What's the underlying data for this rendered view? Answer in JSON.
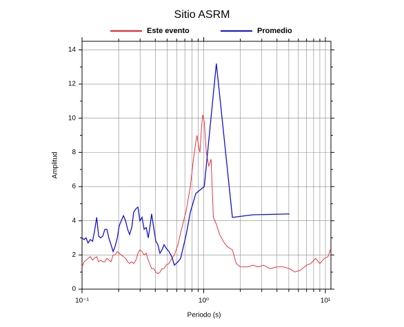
{
  "chart_data": {
    "type": "line",
    "title": "Sitio ASRM",
    "xlabel": "Periodo (s)",
    "ylabel": "Amplitud",
    "xscale": "log",
    "grid": true,
    "xlim": [
      0.1,
      11.1
    ],
    "ylim": [
      0,
      14.5
    ],
    "xticks": [
      {
        "value": 0.1,
        "label": "10⁻¹"
      },
      {
        "value": 1,
        "label": "10⁰"
      },
      {
        "value": 10,
        "label": "10¹"
      }
    ],
    "xminorticks": [
      0.2,
      0.3,
      0.4,
      0.5,
      0.6,
      0.7,
      0.8,
      0.9,
      2,
      3,
      4,
      5,
      6,
      7,
      8,
      9
    ],
    "yticks": [
      0,
      2,
      4,
      6,
      8,
      10,
      12,
      14
    ],
    "yminorticks": [
      1,
      3,
      5,
      7,
      9,
      11,
      13
    ],
    "series": [
      {
        "name": "Este evento",
        "color": "#e8202a",
        "x": [
          0.1,
          0.104,
          0.108,
          0.112,
          0.117,
          0.122,
          0.126,
          0.132,
          0.137,
          0.142,
          0.148,
          0.154,
          0.16,
          0.166,
          0.173,
          0.18,
          0.187,
          0.195,
          0.202,
          0.21,
          0.219,
          0.228,
          0.237,
          0.246,
          0.256,
          0.266,
          0.277,
          0.288,
          0.299,
          0.311,
          0.324,
          0.337,
          0.35,
          0.364,
          0.373,
          0.388,
          0.404,
          0.42,
          0.437,
          0.454,
          0.472,
          0.491,
          0.518,
          0.546,
          0.574,
          0.614,
          0.646,
          0.718,
          0.776,
          0.82,
          0.861,
          0.88,
          0.9,
          0.93,
          0.96,
          0.98,
          1.01,
          1.05,
          1.1,
          1.15,
          1.2,
          1.27,
          1.35,
          1.45,
          1.55,
          1.72,
          1.85,
          2.0,
          2.3,
          2.54,
          2.8,
          3.1,
          3.5,
          4.0,
          4.5,
          5.07,
          5.6,
          6.2,
          7.0,
          7.6,
          8.3,
          9.0,
          9.8,
          10.5,
          11.1
        ],
        "values": [
          1.3,
          1.6,
          1.7,
          1.8,
          1.9,
          1.7,
          1.8,
          1.9,
          1.6,
          1.7,
          1.6,
          1.6,
          1.8,
          1.7,
          1.6,
          2.0,
          2.0,
          2.2,
          2.1,
          2.0,
          1.9,
          1.8,
          1.6,
          1.5,
          1.6,
          1.5,
          1.7,
          2.1,
          2.3,
          2.2,
          2.0,
          2.1,
          1.7,
          1.4,
          1.2,
          1.2,
          1.0,
          0.9,
          1.0,
          1.2,
          1.2,
          1.4,
          1.5,
          1.8,
          2.0,
          2.6,
          3.3,
          4.6,
          6.0,
          7.5,
          8.6,
          9.0,
          8.5,
          8.0,
          9.5,
          10.2,
          9.8,
          8.0,
          7.2,
          7.6,
          4.2,
          3.8,
          3.2,
          2.8,
          2.5,
          2.3,
          1.5,
          1.3,
          1.3,
          1.4,
          1.3,
          1.4,
          1.2,
          1.3,
          1.3,
          1.2,
          1.0,
          1.1,
          1.4,
          1.5,
          1.8,
          1.5,
          1.8,
          1.9,
          2.4
        ]
      },
      {
        "name": "Promedio",
        "color": "#1010d0",
        "x": [
          0.1,
          0.104,
          0.108,
          0.112,
          0.117,
          0.122,
          0.126,
          0.132,
          0.137,
          0.142,
          0.148,
          0.154,
          0.16,
          0.166,
          0.173,
          0.18,
          0.187,
          0.195,
          0.202,
          0.21,
          0.219,
          0.228,
          0.237,
          0.246,
          0.256,
          0.266,
          0.277,
          0.288,
          0.299,
          0.311,
          0.324,
          0.337,
          0.35,
          0.364,
          0.373,
          0.388,
          0.404,
          0.42,
          0.437,
          0.454,
          0.472,
          0.491,
          0.518,
          0.546,
          0.574,
          0.614,
          0.646,
          0.718,
          0.776,
          0.861,
          1.01,
          1.27,
          1.72,
          2.54,
          5.07
        ],
        "values": [
          3.0,
          2.9,
          3.0,
          2.7,
          2.9,
          2.8,
          3.3,
          4.2,
          3.1,
          3.0,
          3.1,
          3.5,
          3.5,
          3.0,
          2.6,
          2.2,
          2.5,
          3.0,
          3.7,
          4.0,
          4.3,
          4.0,
          3.5,
          3.2,
          3.6,
          4.5,
          4.7,
          4.8,
          4.0,
          4.2,
          3.5,
          3.6,
          3.0,
          3.8,
          4.4,
          3.6,
          2.8,
          2.6,
          2.1,
          2.3,
          2.6,
          2.4,
          2.2,
          1.9,
          1.4,
          1.6,
          1.8,
          3.2,
          4.5,
          5.6,
          6.0,
          13.2,
          4.2,
          4.35,
          4.4
        ]
      }
    ]
  }
}
